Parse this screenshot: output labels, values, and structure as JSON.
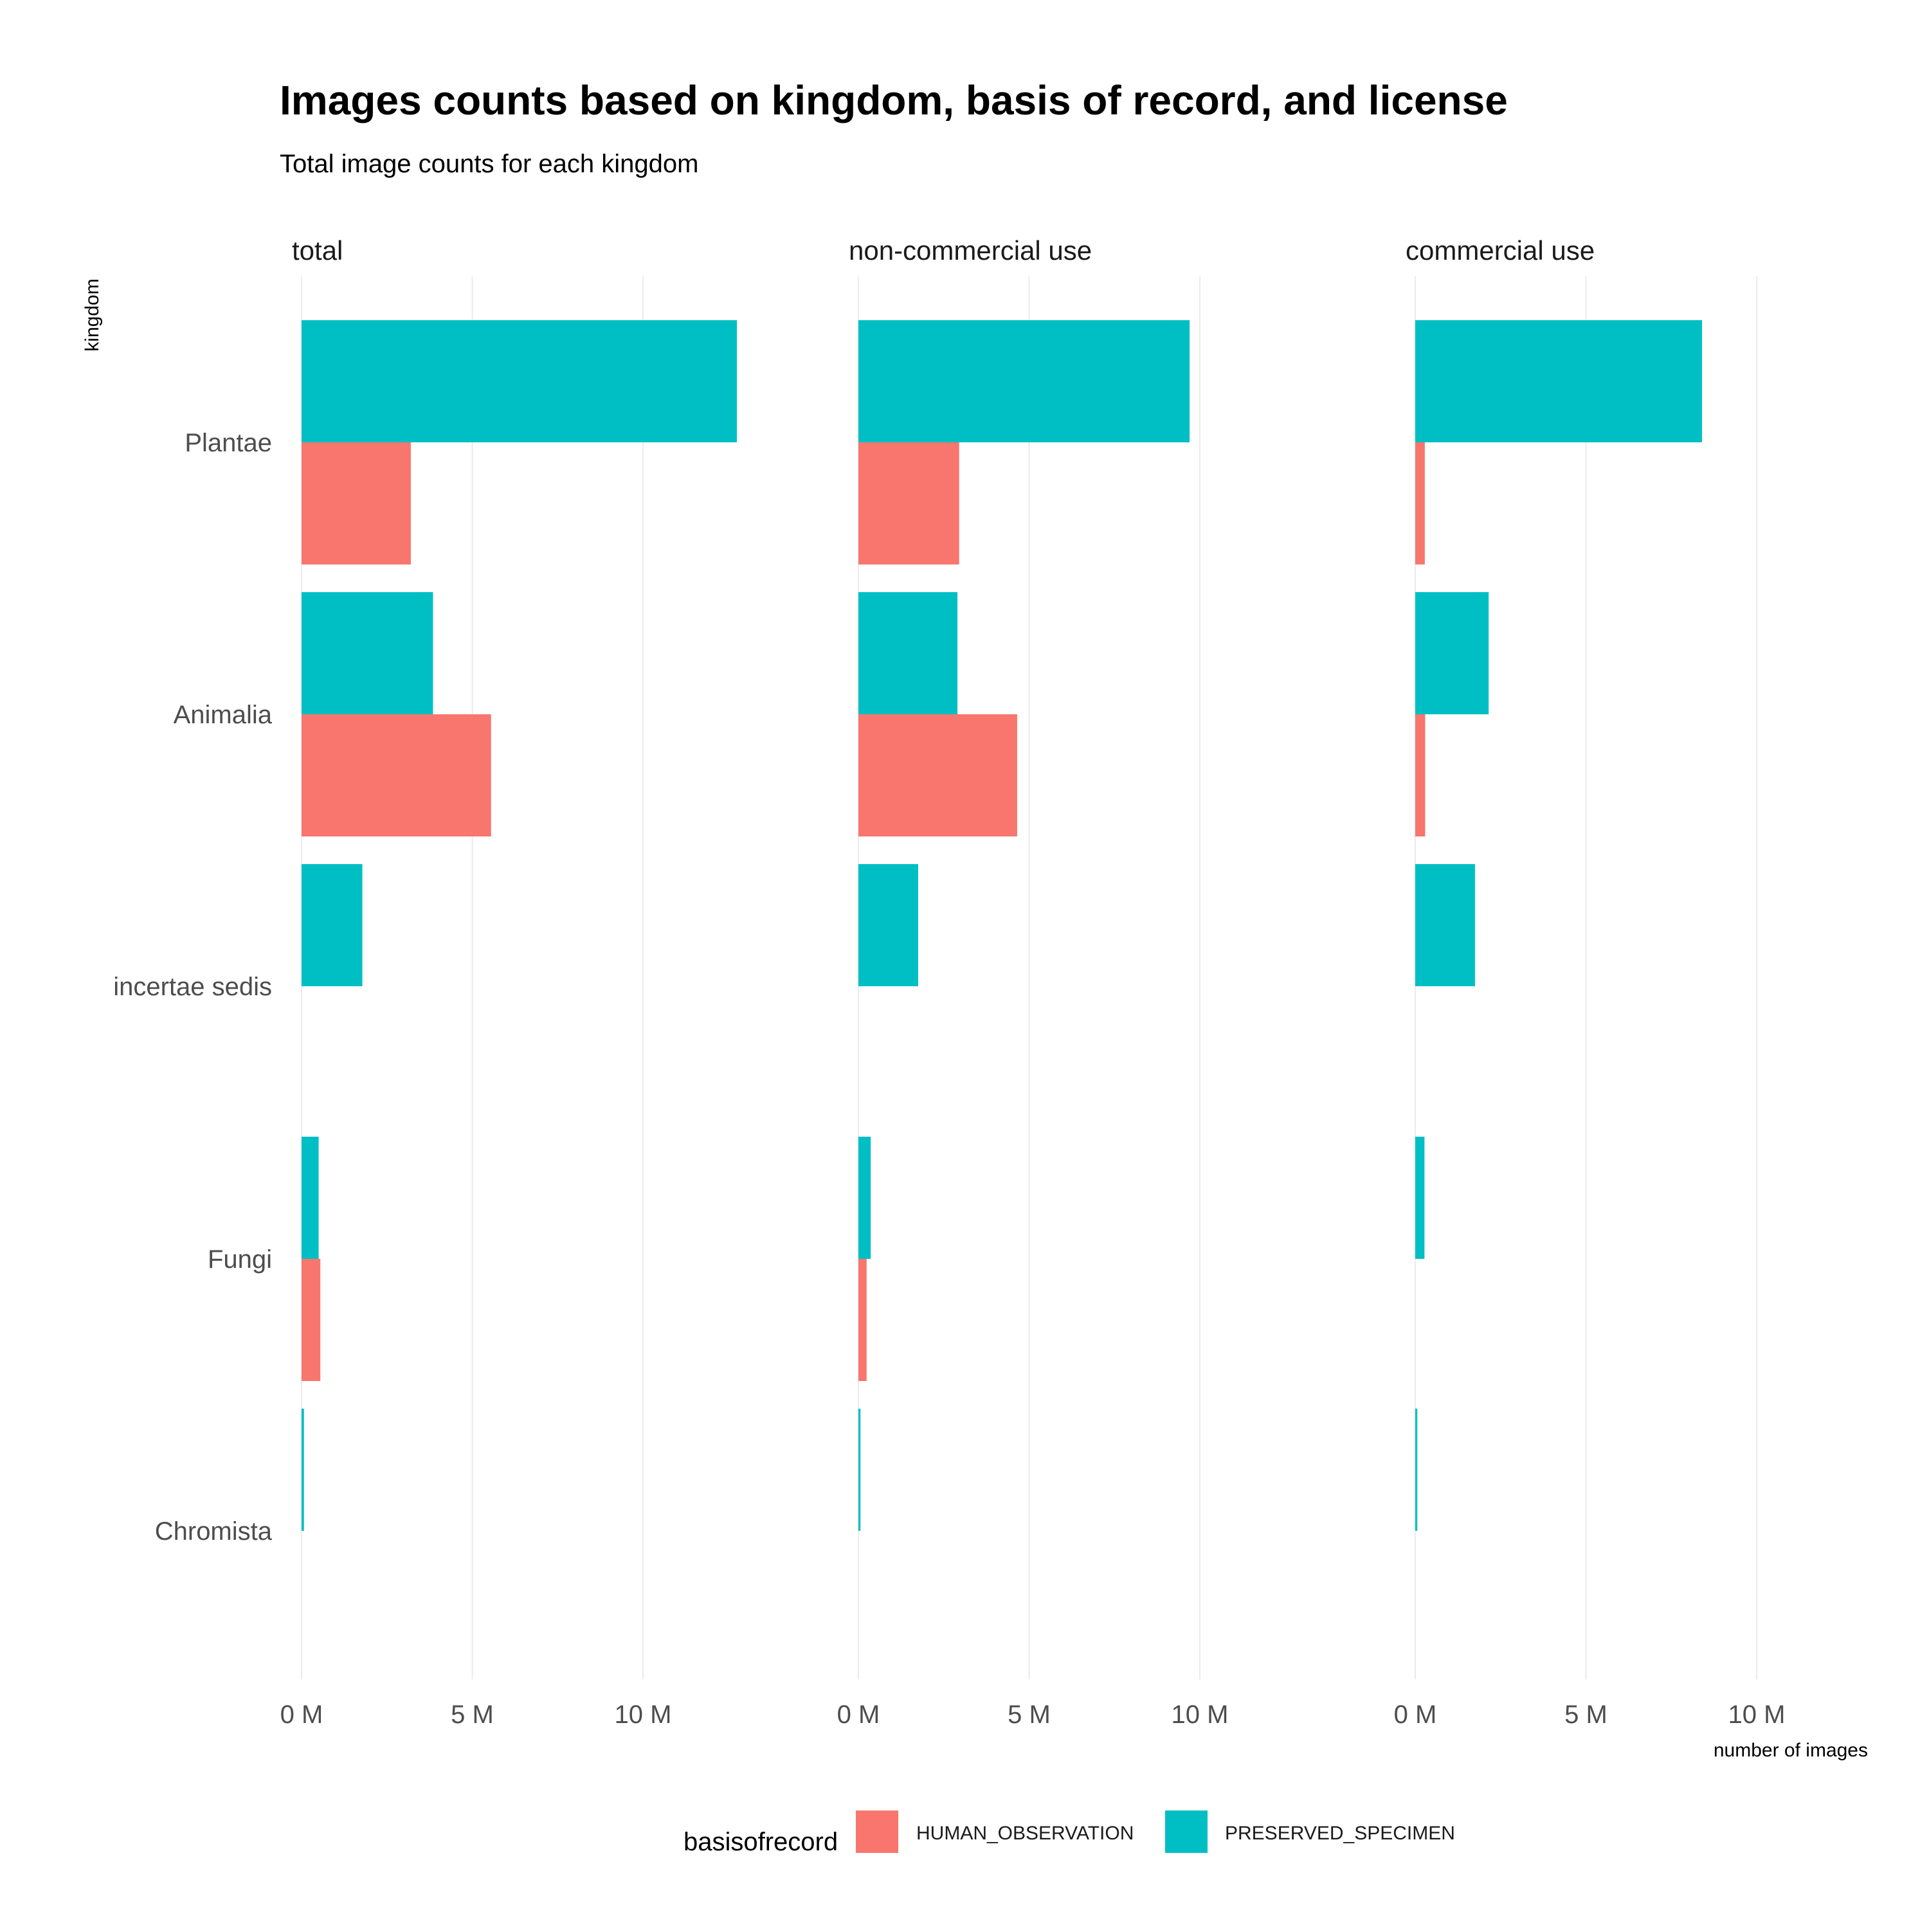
{
  "chart_data": {
    "type": "bar",
    "orientation": "horizontal",
    "title": "Images counts based on kingdom, basis of record, and license",
    "subtitle": "Total image counts for each kingdom",
    "xlabel": "number of images",
    "ylabel": "kingdom",
    "xlim": [
      0,
      13.5
    ],
    "x_ticks": [
      0,
      5,
      10
    ],
    "x_tick_labels": [
      "0 M",
      "5 M",
      "10 M"
    ],
    "grid": "vertical major gridlines",
    "categories": [
      "Plantae",
      "Animalia",
      "incertae sedis",
      "Fungi",
      "Chromista"
    ],
    "legend": {
      "title": "basisofrecord",
      "position": "bottom"
    },
    "series": [
      {
        "name": "HUMAN_OBSERVATION",
        "color": "#F8766D"
      },
      {
        "name": "PRESERVED_SPECIMEN",
        "color": "#00BFC4"
      }
    ],
    "facets": [
      {
        "label": "total",
        "values": {
          "HUMAN_OBSERVATION": [
            3.2,
            5.55,
            null,
            0.55,
            null
          ],
          "PRESERVED_SPECIMEN": [
            12.75,
            3.85,
            1.78,
            0.5,
            0.07
          ]
        }
      },
      {
        "label": "non-commercial use",
        "values": {
          "HUMAN_OBSERVATION": [
            2.95,
            4.65,
            null,
            0.24,
            null
          ],
          "PRESERVED_SPECIMEN": [
            9.7,
            2.9,
            1.75,
            0.36,
            0.06
          ]
        }
      },
      {
        "label": "commercial use",
        "values": {
          "HUMAN_OBSERVATION": [
            0.28,
            0.29,
            null,
            null,
            null
          ],
          "PRESERVED_SPECIMEN": [
            8.4,
            2.15,
            1.75,
            0.27,
            0.06
          ]
        }
      }
    ]
  }
}
